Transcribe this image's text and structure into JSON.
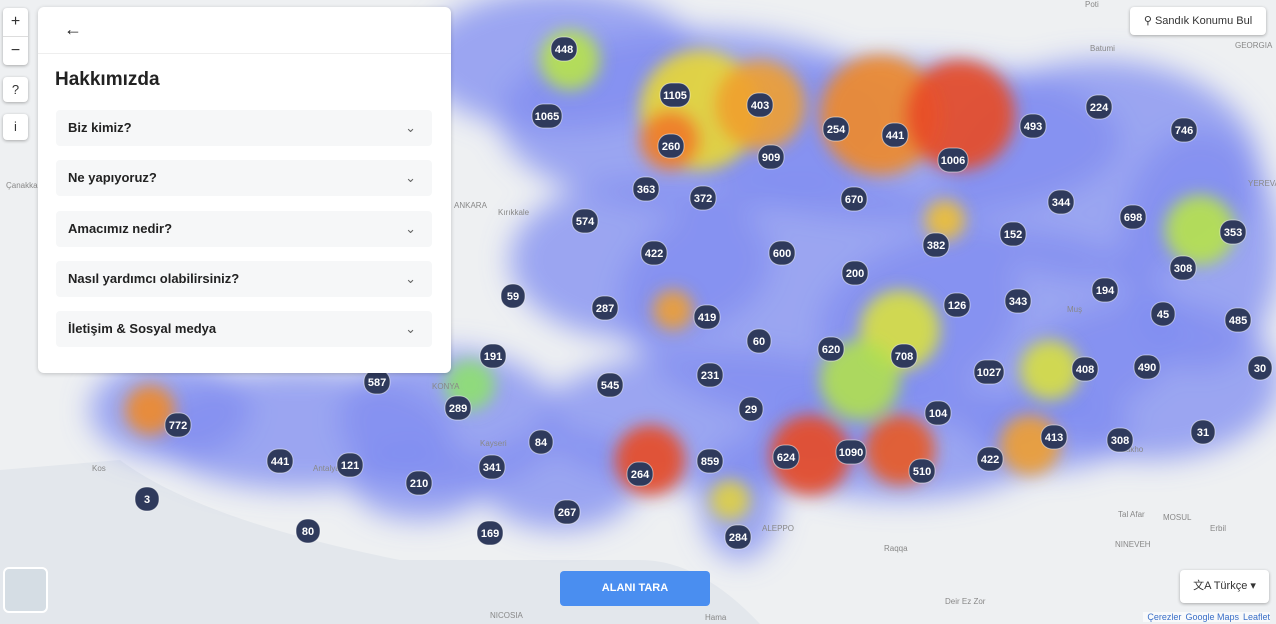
{
  "panel": {
    "title": "Hakkımızda",
    "items": [
      "Biz kimiz?",
      "Ne yapıyoruz?",
      "Amacımız nedir?",
      "Nasıl yardımcı olabilirsiniz?",
      "İletişim & Sosyal medya"
    ]
  },
  "zoom": [
    "+",
    "−"
  ],
  "search_button": "Sandık Konumu Bul",
  "scan_button": "ALANI TARA",
  "language": "Türkçe",
  "attribution": [
    "Çerezler",
    "Google Maps",
    "Leaflet"
  ],
  "place_labels": [
    "Poti",
    "Batumi",
    "GEORGIA",
    "YEREVAN",
    "ANKARA",
    "Kırıkkale",
    "Çanakkale",
    "KONYA",
    "Kayseri",
    "Antalya",
    "Kos",
    "NICOSIA",
    "ALEPPO",
    "Hama",
    "Raqqa",
    "Deir Ez Zor",
    "Tal Afar",
    "MOSUL",
    "Erbil",
    "NINEVEH",
    "Zakho",
    "Muş"
  ],
  "clusters": [
    448,
    1105,
    1065,
    403,
    254,
    441,
    493,
    224,
    746,
    260,
    909,
    1006,
    363,
    372,
    670,
    344,
    698,
    353,
    574,
    422,
    600,
    382,
    152,
    308,
    200,
    194,
    59,
    287,
    419,
    126,
    343,
    45,
    485,
    60,
    620,
    708,
    191,
    587,
    545,
    231,
    1027,
    408,
    490,
    30,
    289,
    29,
    104,
    772,
    84,
    413,
    308,
    31,
    441,
    121,
    341,
    859,
    624,
    1090,
    510,
    422,
    264,
    210,
    3,
    267,
    80,
    169,
    284
  ]
}
